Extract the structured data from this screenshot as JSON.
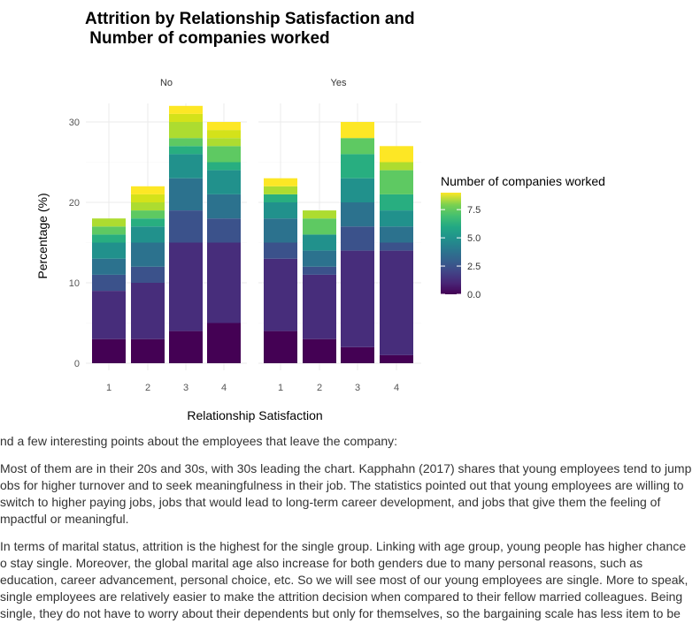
{
  "chart_data": {
    "type": "bar",
    "stacked": true,
    "title": "Attrition by Relationship Satisfaction and\n Number of companies worked",
    "xlabel": "Relationship Satisfaction",
    "ylabel": "Percentage (%)",
    "ylim": [
      0,
      32
    ],
    "yticks": [
      0,
      10,
      20,
      30
    ],
    "grid": true,
    "legend_title": "Number of companies worked",
    "legend_position": "right",
    "colorbar_ticks": [
      "0.0",
      "2.5",
      "5.0",
      "7.5"
    ],
    "colorbar_range": [
      0,
      9
    ],
    "colors": {
      "0": "#440154",
      "1": "#472D7B",
      "2": "#3B528B",
      "3": "#2C728E",
      "4": "#21918C",
      "5": "#28AE80",
      "6": "#5EC962",
      "7": "#ADDC30",
      "8": "#D4E21A",
      "9": "#FDE725"
    },
    "facets": [
      {
        "label": "No",
        "bars": [
          {
            "category": "1",
            "segments": [
              {
                "companies": 0,
                "value": 3
              },
              {
                "companies": 1,
                "value": 6
              },
              {
                "companies": 2,
                "value": 2
              },
              {
                "companies": 3,
                "value": 2
              },
              {
                "companies": 4,
                "value": 2
              },
              {
                "companies": 5,
                "value": 1
              },
              {
                "companies": 6,
                "value": 1
              },
              {
                "companies": 7,
                "value": 1
              }
            ]
          },
          {
            "category": "2",
            "segments": [
              {
                "companies": 0,
                "value": 3
              },
              {
                "companies": 1,
                "value": 7
              },
              {
                "companies": 2,
                "value": 2
              },
              {
                "companies": 3,
                "value": 3
              },
              {
                "companies": 4,
                "value": 2
              },
              {
                "companies": 5,
                "value": 1
              },
              {
                "companies": 6,
                "value": 1
              },
              {
                "companies": 7,
                "value": 1
              },
              {
                "companies": 8,
                "value": 1
              },
              {
                "companies": 9,
                "value": 1
              }
            ]
          },
          {
            "category": "3",
            "segments": [
              {
                "companies": 0,
                "value": 4
              },
              {
                "companies": 1,
                "value": 11
              },
              {
                "companies": 2,
                "value": 4
              },
              {
                "companies": 3,
                "value": 4
              },
              {
                "companies": 4,
                "value": 3
              },
              {
                "companies": 5,
                "value": 1
              },
              {
                "companies": 6,
                "value": 1
              },
              {
                "companies": 7,
                "value": 2
              },
              {
                "companies": 8,
                "value": 1
              },
              {
                "companies": 9,
                "value": 1
              }
            ]
          },
          {
            "category": "4",
            "segments": [
              {
                "companies": 0,
                "value": 5
              },
              {
                "companies": 1,
                "value": 10
              },
              {
                "companies": 2,
                "value": 3
              },
              {
                "companies": 3,
                "value": 3
              },
              {
                "companies": 4,
                "value": 3
              },
              {
                "companies": 5,
                "value": 1
              },
              {
                "companies": 6,
                "value": 2
              },
              {
                "companies": 7,
                "value": 1
              },
              {
                "companies": 8,
                "value": 1
              },
              {
                "companies": 9,
                "value": 1
              }
            ]
          }
        ]
      },
      {
        "label": "Yes",
        "bars": [
          {
            "category": "1",
            "segments": [
              {
                "companies": 0,
                "value": 4
              },
              {
                "companies": 1,
                "value": 9
              },
              {
                "companies": 2,
                "value": 2
              },
              {
                "companies": 3,
                "value": 3
              },
              {
                "companies": 4,
                "value": 2
              },
              {
                "companies": 5,
                "value": 1
              },
              {
                "companies": 7,
                "value": 1
              },
              {
                "companies": 9,
                "value": 1
              }
            ]
          },
          {
            "category": "2",
            "segments": [
              {
                "companies": 0,
                "value": 3
              },
              {
                "companies": 1,
                "value": 8
              },
              {
                "companies": 2,
                "value": 1
              },
              {
                "companies": 3,
                "value": 2
              },
              {
                "companies": 4,
                "value": 2
              },
              {
                "companies": 6,
                "value": 2
              },
              {
                "companies": 7,
                "value": 1
              }
            ]
          },
          {
            "category": "3",
            "segments": [
              {
                "companies": 0,
                "value": 2
              },
              {
                "companies": 1,
                "value": 12
              },
              {
                "companies": 2,
                "value": 3
              },
              {
                "companies": 3,
                "value": 3
              },
              {
                "companies": 4,
                "value": 3
              },
              {
                "companies": 5,
                "value": 3
              },
              {
                "companies": 6,
                "value": 2
              },
              {
                "companies": 9,
                "value": 2
              }
            ]
          },
          {
            "category": "4",
            "segments": [
              {
                "companies": 0,
                "value": 1
              },
              {
                "companies": 1,
                "value": 13
              },
              {
                "companies": 2,
                "value": 1
              },
              {
                "companies": 3,
                "value": 2
              },
              {
                "companies": 4,
                "value": 2
              },
              {
                "companies": 5,
                "value": 2
              },
              {
                "companies": 6,
                "value": 3
              },
              {
                "companies": 7,
                "value": 1
              },
              {
                "companies": 9,
                "value": 2
              }
            ]
          }
        ]
      }
    ]
  },
  "prose": {
    "p1": "nd a few interesting points about the employees that leave the company:",
    "p2": [
      "Most of them are in their 20s and 30s, with 30s leading the chart. Kapphahn (2017) shares that young employees tend to jump",
      "obs for higher turnover and to seek meaningfulness in their job. The statistics pointed out that young employees are willing to",
      "switch to higher paying jobs, jobs that would lead to long-term career development, and jobs that give them the feeling of",
      "mpactful or meaningful."
    ],
    "p3": [
      "In terms of marital status, attrition is the highest for the single group. Linking with age group, young people has higher chance",
      "o stay single. Moreover, the global marital age also increase for both genders due to many personal reasons, such as",
      "education, career advancement, personal choice, etc. So we will see most of our young employees are single. More to speak,",
      "single employees are relatively easier to make the attrition decision when compared to their fellow married colleagues. Being",
      "single, they do not have to worry about their dependents but only for themselves, so the bargaining scale has less item to be"
    ]
  }
}
